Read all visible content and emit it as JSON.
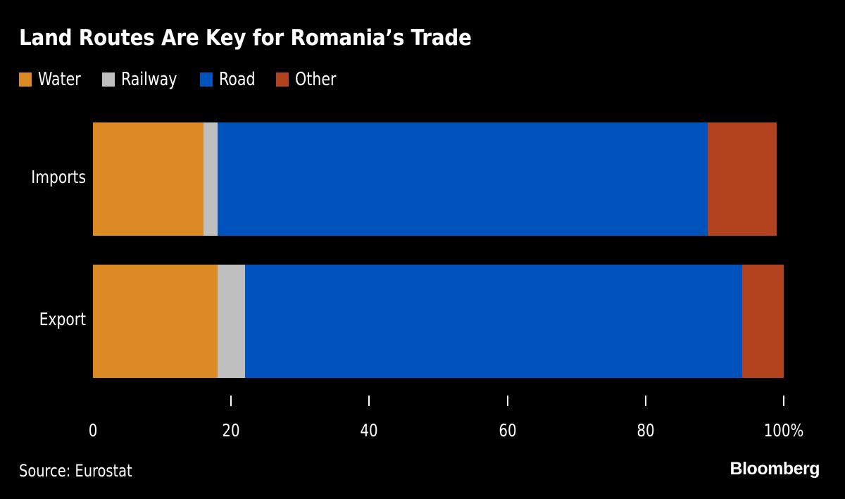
{
  "title": "Land Routes Are Key for Romania’s Trade",
  "legend": [
    {
      "label": "Water",
      "color": "#DC8A24"
    },
    {
      "label": "Railway",
      "color": "#BFBFBF"
    },
    {
      "label": "Road",
      "color": "#0052BD"
    },
    {
      "label": "Other",
      "color": "#B3431E"
    }
  ],
  "footer": {
    "source": "Source: Eurostat",
    "brand": "Bloomberg"
  },
  "chart_data": {
    "type": "bar",
    "orientation": "horizontal",
    "stacked": true,
    "title": "Land Routes Are Key for Romania’s Trade",
    "categories": [
      "Imports",
      "Export"
    ],
    "series": [
      {
        "name": "Water",
        "color": "#DC8A24",
        "values": [
          16,
          18
        ]
      },
      {
        "name": "Railway",
        "color": "#BFBFBF",
        "values": [
          2,
          4
        ]
      },
      {
        "name": "Road",
        "color": "#0052BD",
        "values": [
          71,
          72
        ]
      },
      {
        "name": "Other",
        "color": "#B3431E",
        "values": [
          10,
          6
        ]
      }
    ],
    "xlabel": "",
    "ylabel": "",
    "xlim": [
      0,
      100
    ],
    "x_ticks": [
      "0",
      "20",
      "40",
      "60",
      "80",
      "100%"
    ],
    "grid": false,
    "legend_position": "top-left",
    "source": "Source: Eurostat"
  }
}
